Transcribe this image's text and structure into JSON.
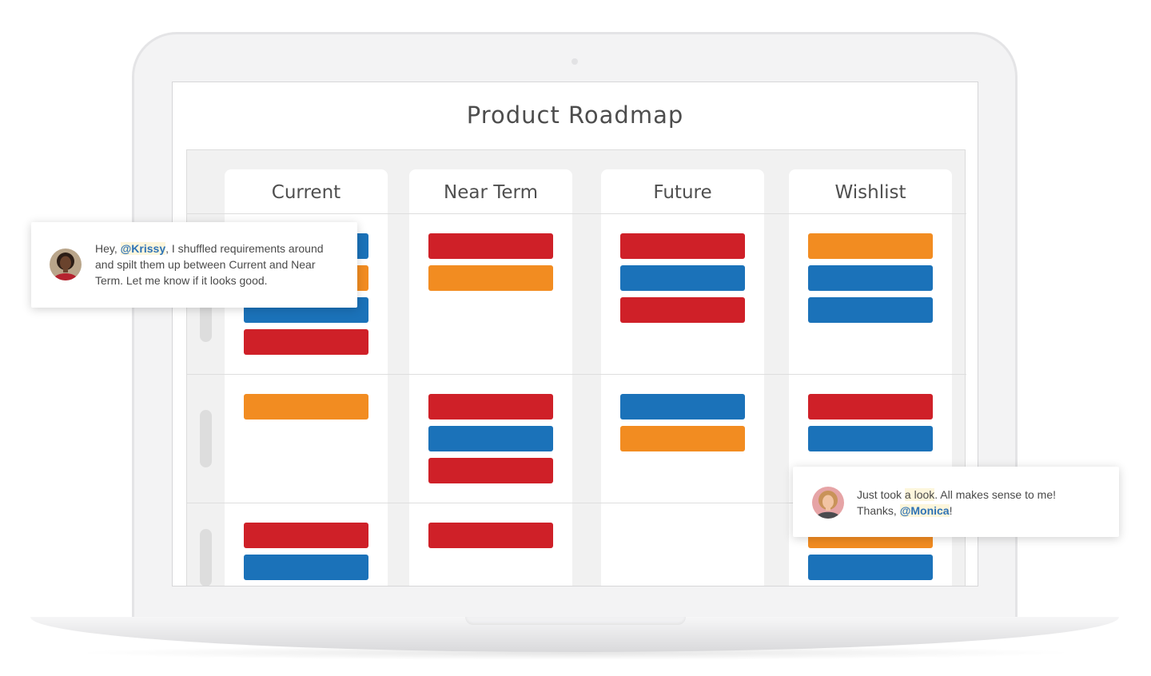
{
  "roadmap": {
    "title": "Product Roadmap",
    "columns": [
      "Current",
      "Near Term",
      "Future",
      "Wishlist"
    ]
  },
  "cards": {
    "row1": {
      "current": [
        "blue",
        "orange",
        "blue",
        "red"
      ],
      "near_term": [
        "red",
        "orange"
      ],
      "future": [
        "red",
        "blue",
        "red"
      ],
      "wishlist": [
        "orange",
        "blue",
        "blue"
      ]
    },
    "row2": {
      "current": [
        "orange"
      ],
      "near_term": [
        "red",
        "blue",
        "red"
      ],
      "future": [
        "blue",
        "orange"
      ],
      "wishlist": [
        "red",
        "blue"
      ]
    },
    "row3": {
      "current": [
        "red",
        "blue"
      ],
      "near_term": [
        "red"
      ],
      "future": [],
      "wishlist": [
        "orange",
        "blue"
      ]
    }
  },
  "colors": {
    "red": "#cf2028",
    "orange": "#f28c21",
    "blue": "#1b72b9",
    "mention": "#2e73b5"
  },
  "comment1": {
    "prefix": "Hey, ",
    "mention": "@Krissy",
    "line1_rest": ", I shuffled requirements around",
    "line2": "and spilt them up between Current and Near",
    "line3": "Term. Let me know if it looks good."
  },
  "comment2": {
    "line1_a": "Just took ",
    "line1_highlight": "a look",
    "line1_b": ". All makes sense to me!",
    "line2_a": "Thanks, ",
    "mention": "@Monica",
    "line2_b": "!"
  }
}
